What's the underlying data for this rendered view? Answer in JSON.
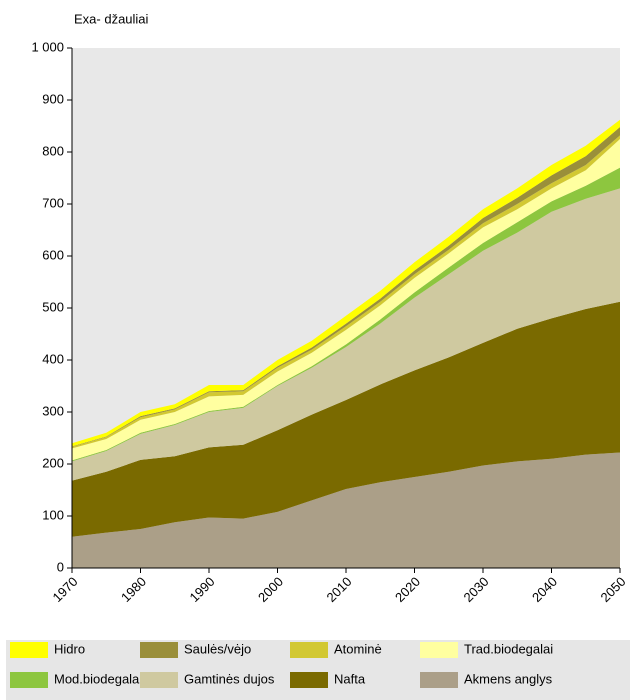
{
  "chart_data": {
    "type": "stacked_area",
    "y_label": "Exa- džauliai",
    "x": [
      1970,
      1975,
      1980,
      1985,
      1990,
      1995,
      2000,
      2005,
      2010,
      2015,
      2020,
      2025,
      2030,
      2035,
      2040,
      2045,
      2050
    ],
    "series": [
      {
        "name": "Hidro",
        "color": "#ffff00",
        "values": [
          6,
          7,
          8,
          8,
          12,
          10,
          12,
          13,
          15,
          15,
          16,
          17,
          17,
          18,
          20,
          20,
          14
        ]
      },
      {
        "name": "Saulės/vėjo",
        "color": "#9a8f3a",
        "values": [
          1,
          1,
          2,
          2,
          2,
          2,
          3,
          4,
          5,
          6,
          7,
          8,
          10,
          12,
          15,
          17,
          16
        ]
      },
      {
        "name": "Atominė",
        "color": "#d2c832",
        "values": [
          3,
          4,
          5,
          5,
          8,
          7,
          7,
          6,
          7,
          7,
          7,
          7,
          8,
          10,
          10,
          10,
          7
        ]
      },
      {
        "name": "Trad.biodegalai",
        "color": "#ffffa0",
        "values": [
          23,
          21,
          25,
          23,
          28,
          23,
          26,
          26,
          28,
          27,
          28,
          27,
          30,
          25,
          25,
          30,
          55
        ]
      },
      {
        "name": "Mod.biodegalai",
        "color": "#8dc63f",
        "values": [
          2,
          2,
          2,
          2,
          2,
          2,
          2,
          3,
          5,
          8,
          10,
          13,
          15,
          20,
          20,
          25,
          40
        ]
      },
      {
        "name": "Gamtinės dujos",
        "color": "#cfc9a0",
        "values": [
          37,
          40,
          50,
          60,
          68,
          71,
          85,
          90,
          102,
          117,
          140,
          160,
          177,
          185,
          205,
          212,
          218
        ]
      },
      {
        "name": "Nafta",
        "color": "#7a6a00",
        "values": [
          108,
          117,
          133,
          127,
          135,
          142,
          157,
          165,
          171,
          188,
          205,
          220,
          236,
          255,
          270,
          280,
          290
        ]
      },
      {
        "name": "Akmens anglys",
        "color": "#ab9f88",
        "values": [
          60,
          68,
          75,
          88,
          97,
          95,
          108,
          130,
          152,
          165,
          175,
          185,
          197,
          205,
          210,
          218,
          222
        ]
      }
    ],
    "xlim": [
      1970,
      2050
    ],
    "xticks": [
      1970,
      1980,
      1990,
      2000,
      2010,
      2020,
      2030,
      2040,
      2050
    ],
    "ylim": [
      0,
      1000
    ],
    "yticks": [
      0,
      100,
      200,
      300,
      400,
      500,
      600,
      700,
      800,
      900,
      {
        "value": 1000,
        "label": "1 000"
      }
    ],
    "grid": false,
    "legend": "bottom"
  }
}
